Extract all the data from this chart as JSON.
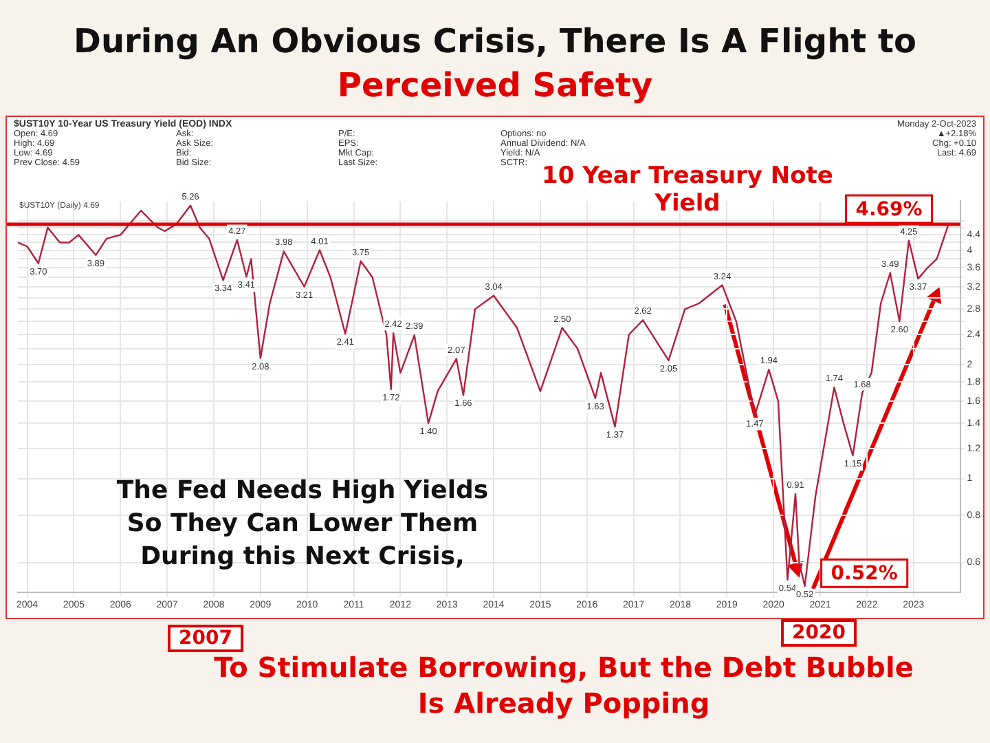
{
  "chart_data": {
    "type": "line",
    "title": "During An Obvious Crisis, There Is A Flight to",
    "subtitle": "Perceived Safety",
    "annotations": [
      "10 Year Treasury Note Yield",
      "The Fed Needs High Yields So They Can Lower Them During this Next Crisis,",
      "2007",
      "2020",
      "To Stimulate Borrowing, But the Debt Bubble Is Already Popping",
      {
        "text": "4.69%",
        "x": 2023.75,
        "y": 4.69
      },
      {
        "text": "0.52%",
        "x": 2020.67,
        "y": 0.52
      },
      "$UST10Y 10-Year US Treasury Yield (EOD) INDX",
      "Open: 4.69",
      "High: 4.69",
      "Low: 4.69",
      "Prev Close: 4.59",
      "Ask:",
      "Ask Size:",
      "Bid:",
      "Bid Size:",
      "P/E:",
      "EPS:",
      "Mkt Cap:",
      "Last Size:",
      "Options: no",
      "Annual Dividend: N/A",
      "Yield: N/A",
      "SCTR:",
      "Monday 2-Oct-2023",
      "▲+2.18%",
      "Chg: +0.10",
      "Last: 4.69",
      "$UST10Y (Daily) 4.69"
    ],
    "x": [
      2003.8,
      2004.0,
      2004.24,
      2004.44,
      2004.7,
      2004.9,
      2005.1,
      2005.47,
      2005.7,
      2006.0,
      2006.44,
      2006.8,
      2006.95,
      2007.2,
      2007.5,
      2007.7,
      2007.9,
      2008.2,
      2008.5,
      2008.7,
      2008.8,
      2009.0,
      2009.2,
      2009.5,
      2009.94,
      2010.27,
      2010.5,
      2010.82,
      2011.15,
      2011.4,
      2011.7,
      2011.8,
      2011.85,
      2012.0,
      2012.3,
      2012.6,
      2012.8,
      2013.2,
      2013.35,
      2013.6,
      2014.0,
      2014.5,
      2015.0,
      2015.47,
      2015.8,
      2016.18,
      2016.3,
      2016.6,
      2016.9,
      2017.2,
      2017.75,
      2018.1,
      2018.4,
      2018.9,
      2019.2,
      2019.6,
      2019.9,
      2020.1,
      2020.3,
      2020.47,
      2020.55,
      2020.67,
      2020.9,
      2021.3,
      2021.5,
      2021.7,
      2021.9,
      2022.1,
      2022.3,
      2022.5,
      2022.7,
      2022.9,
      2023.1,
      2023.3,
      2023.5,
      2023.75
    ],
    "series": [
      {
        "color": "#b3203c",
        "values": [
          4.2,
          4.1,
          3.7,
          4.6,
          4.2,
          4.2,
          4.4,
          3.89,
          4.3,
          4.4,
          5.1,
          4.6,
          4.5,
          4.7,
          5.26,
          4.6,
          4.3,
          3.34,
          4.27,
          3.41,
          3.8,
          2.08,
          2.9,
          3.98,
          3.21,
          4.01,
          3.4,
          2.41,
          3.75,
          3.4,
          2.4,
          1.72,
          2.42,
          1.9,
          2.39,
          1.4,
          1.7,
          2.07,
          1.66,
          2.8,
          3.04,
          2.5,
          1.7,
          2.5,
          2.2,
          1.63,
          1.9,
          1.37,
          2.4,
          2.62,
          2.05,
          2.8,
          2.9,
          3.24,
          2.6,
          1.47,
          1.94,
          1.6,
          0.54,
          0.91,
          0.6,
          0.52,
          0.9,
          1.74,
          1.4,
          1.15,
          1.68,
          1.9,
          2.9,
          3.49,
          2.6,
          4.25,
          3.37,
          3.6,
          3.8,
          4.69
        ],
        "value_labels": [
          null,
          null,
          "3.70",
          null,
          null,
          null,
          null,
          "3.89",
          null,
          null,
          null,
          null,
          null,
          null,
          "5.26",
          null,
          null,
          "3.34",
          "4.27",
          "3.41",
          null,
          "2.08",
          null,
          "3.98",
          "3.21",
          "4.01",
          null,
          "2.41",
          "3.75",
          null,
          null,
          "1.72",
          "2.42",
          null,
          "2.39",
          "1.40",
          null,
          "2.07",
          "1.66",
          null,
          "3.04",
          null,
          null,
          "2.50",
          null,
          "1.63",
          null,
          "1.37",
          null,
          "2.62",
          "2.05",
          null,
          null,
          "3.24",
          null,
          "1.47",
          "1.94",
          null,
          "0.54",
          "0.91",
          null,
          "0.52",
          null,
          "1.74",
          null,
          "1.15",
          "1.68",
          null,
          null,
          "3.49",
          "2.60",
          "4.25",
          "3.37",
          null,
          null,
          null
        ]
      }
    ],
    "xlim": [
      2003.8,
      2024.0
    ],
    "xticks": [
      2004,
      2005,
      2006,
      2007,
      2008,
      2009,
      2010,
      2011,
      2012,
      2013,
      2014,
      2015,
      2016,
      2017,
      2018,
      2019,
      2020,
      2021,
      2022,
      2023
    ],
    "ylim": [
      0.5,
      5.4
    ],
    "yticks": [
      0.6,
      0.8,
      1.0,
      1.2,
      1.4,
      1.6,
      1.8,
      2.0,
      {
        "value": 2.2,
        "label": null
      },
      2.4,
      {
        "value": 2.6,
        "label": null
      },
      2.8,
      {
        "value": 3.0,
        "label": null
      },
      3.2,
      {
        "value": 3.4,
        "label": null
      },
      3.6,
      {
        "value": 3.8,
        "label": null
      },
      4.0,
      {
        "value": 4.2,
        "label": null
      },
      4.4,
      {
        "value": 4.6,
        "label": null
      },
      {
        "value": 4.8,
        "label": null
      }
    ],
    "log": "y",
    "grid": true,
    "ref_lines": [
      {
        "axis": "y",
        "value": 4.69,
        "color": "#e00000"
      }
    ]
  }
}
